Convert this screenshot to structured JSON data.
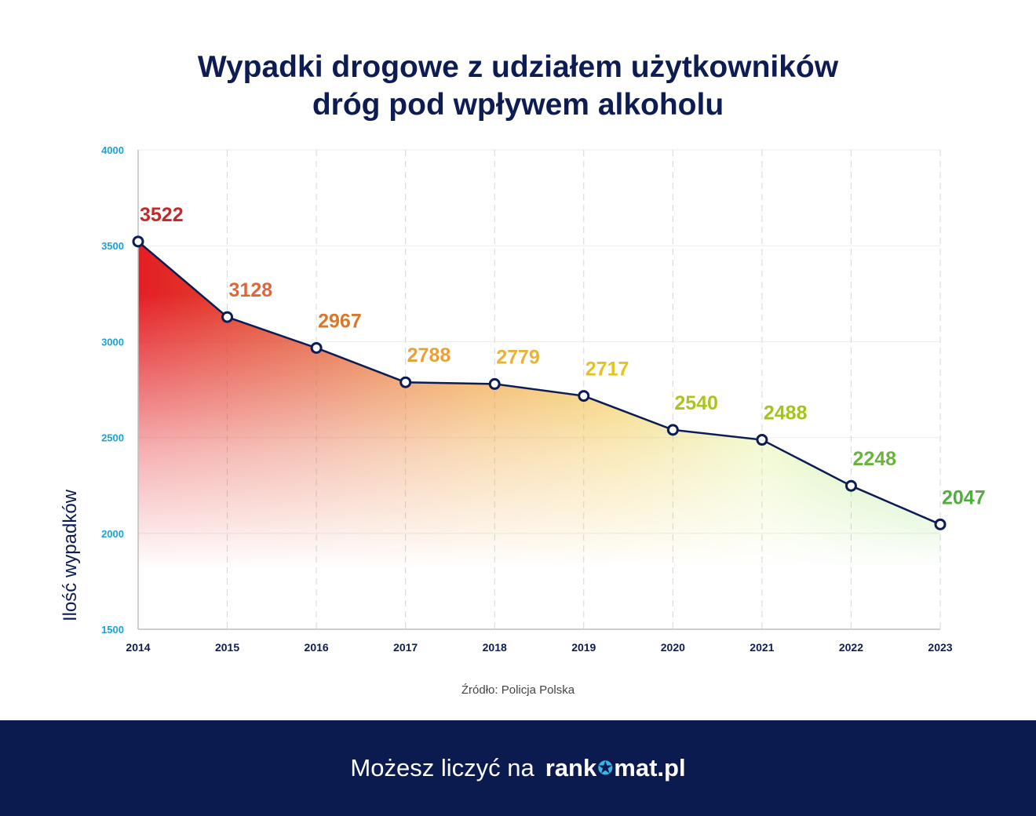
{
  "title_line1": "Wypadki drogowe z udziałem użytkowników",
  "title_line2": "dróg pod wpływem alkoholu",
  "source": "Źródło: Policja Polska",
  "footer": {
    "text": "Możesz liczyć na",
    "brand_prefix": "rank",
    "brand_star_icon": "star-icon",
    "brand_suffix": "mat.pl"
  },
  "chart_data": {
    "type": "line",
    "title": "Wypadki drogowe z udziałem użytkowników dróg pod wpływem alkoholu",
    "xlabel": "",
    "ylabel": "Ilość wypadków",
    "x": [
      "2014",
      "2015",
      "2016",
      "2017",
      "2018",
      "2019",
      "2020",
      "2021",
      "2022",
      "2023"
    ],
    "values": [
      3522,
      3128,
      2967,
      2788,
      2779,
      2717,
      2540,
      2488,
      2248,
      2047
    ],
    "ylim": [
      1500,
      4000
    ],
    "yticks": [
      1500,
      2000,
      2500,
      3000,
      3500,
      4000
    ],
    "grid": true,
    "label_colors": [
      "#c62828",
      "#e0663a",
      "#d9782c",
      "#e6a13a",
      "#e8b23b",
      "#e5c21c",
      "#a8c71c",
      "#a3c41d",
      "#6cb23f",
      "#4fae3e"
    ],
    "line_color": "#0d1d53",
    "tick_color": "#1aa3d9"
  }
}
